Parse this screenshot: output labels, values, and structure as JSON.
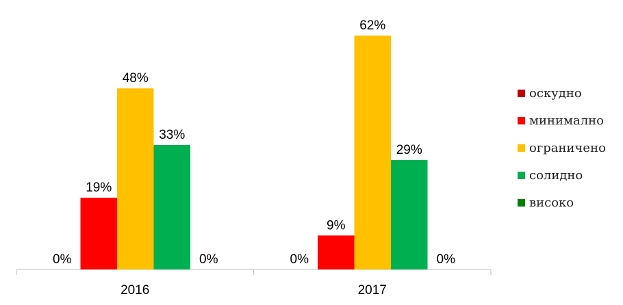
{
  "chart_data": {
    "type": "bar",
    "categories": [
      "2016",
      "2017"
    ],
    "series": [
      {
        "name": "оскудно",
        "color": "#C00000",
        "values": [
          0,
          0
        ],
        "labels": [
          "0%",
          "0%"
        ]
      },
      {
        "name": "минимално",
        "color": "#FF0000",
        "values": [
          19,
          9
        ],
        "labels": [
          "19%",
          "9%"
        ]
      },
      {
        "name": "ограничено",
        "color": "#FFC000",
        "values": [
          48,
          62
        ],
        "labels": [
          "48%",
          "62%"
        ]
      },
      {
        "name": "солидно",
        "color": "#00B050",
        "values": [
          33,
          29
        ],
        "labels": [
          "33%",
          "29%"
        ]
      },
      {
        "name": "високо",
        "color": "#008000",
        "values": [
          0,
          0
        ],
        "labels": [
          "0%",
          "0%"
        ]
      }
    ],
    "legend_position": "right",
    "grid": false
  }
}
